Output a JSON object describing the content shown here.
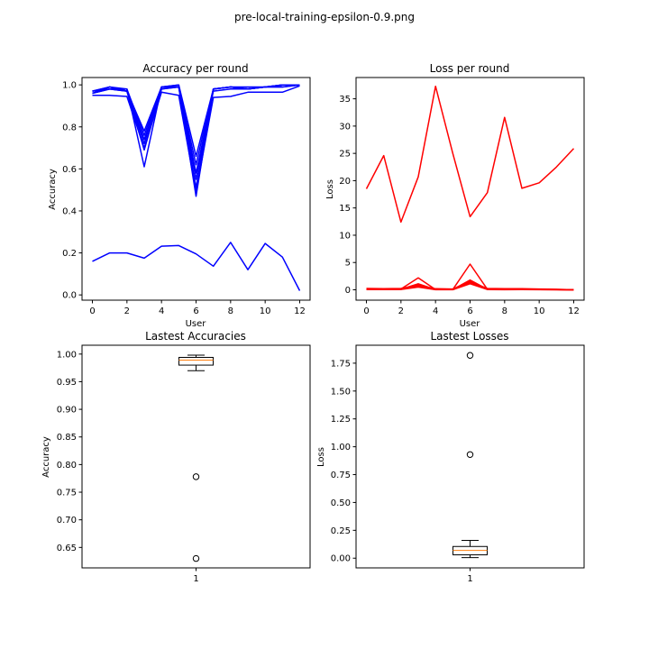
{
  "figure_title": "pre-local-training-epsilon-0.9.png",
  "chart_data": [
    {
      "id": "accuracy-per-round",
      "type": "line",
      "title": "Accuracy per round",
      "xlabel": "User",
      "ylabel": "Accuracy",
      "xlim": [
        -0.6,
        12.6
      ],
      "ylim": [
        -0.025,
        1.035
      ],
      "xticks": [
        0,
        2,
        4,
        6,
        8,
        10,
        12
      ],
      "yticks": [
        0.0,
        0.2,
        0.4,
        0.6,
        0.8,
        1.0
      ],
      "ytick_labels": [
        "0.0",
        "0.2",
        "0.4",
        "0.6",
        "0.8",
        "1.0"
      ],
      "color": "#0000ff",
      "x": [
        0,
        1,
        2,
        3,
        4,
        5,
        6,
        7,
        8,
        9,
        10,
        11,
        12
      ],
      "series": [
        {
          "values": [
            0.96,
            0.99,
            0.97,
            0.78,
            0.99,
            1.0,
            0.66,
            0.98,
            0.99,
            0.98,
            0.99,
            1.0,
            1.0
          ]
        },
        {
          "values": [
            0.97,
            0.99,
            0.98,
            0.76,
            0.99,
            0.99,
            0.62,
            0.98,
            0.99,
            0.98,
            0.99,
            1.0,
            1.0
          ]
        },
        {
          "values": [
            0.96,
            0.98,
            0.97,
            0.74,
            0.98,
            0.99,
            0.58,
            0.97,
            0.98,
            0.98,
            0.99,
            0.99,
            1.0
          ]
        },
        {
          "values": [
            0.97,
            0.99,
            0.97,
            0.72,
            0.99,
            1.0,
            0.55,
            0.98,
            0.99,
            0.99,
            0.99,
            1.0,
            1.0
          ]
        },
        {
          "values": [
            0.96,
            0.98,
            0.97,
            0.69,
            0.98,
            0.99,
            0.51,
            0.98,
            0.99,
            0.98,
            0.99,
            0.99,
            1.0
          ]
        },
        {
          "values": [
            0.97,
            0.98,
            0.98,
            0.61,
            0.99,
            0.99,
            0.47,
            0.98,
            0.99,
            0.98,
            0.99,
            1.0,
            1.0
          ]
        },
        {
          "values": [
            0.95,
            0.95,
            0.945,
            0.7,
            0.965,
            0.95,
            0.49,
            0.94,
            0.945,
            0.965,
            0.965,
            0.965,
            0.995
          ]
        },
        {
          "values": [
            0.16,
            0.2,
            0.2,
            0.175,
            0.232,
            0.235,
            0.195,
            0.137,
            0.25,
            0.12,
            0.245,
            0.18,
            0.02
          ]
        }
      ]
    },
    {
      "id": "loss-per-round",
      "type": "line",
      "title": "Loss per round",
      "xlabel": "User",
      "ylabel": "Loss",
      "xlim": [
        -0.6,
        12.6
      ],
      "ylim": [
        -1.9,
        38.9
      ],
      "xticks": [
        0,
        2,
        4,
        6,
        8,
        10,
        12
      ],
      "yticks": [
        0,
        5,
        10,
        15,
        20,
        25,
        30,
        35
      ],
      "ytick_labels": [
        "0",
        "5",
        "10",
        "15",
        "20",
        "25",
        "30",
        "35"
      ],
      "color": "#ff0000",
      "x": [
        0,
        1,
        2,
        3,
        4,
        5,
        6,
        7,
        8,
        9,
        10,
        11,
        12
      ],
      "series": [
        {
          "values": [
            18.5,
            24.6,
            12.4,
            20.7,
            37.3,
            25.0,
            13.4,
            17.8,
            31.6,
            18.6,
            19.6,
            22.5,
            25.9
          ]
        },
        {
          "values": [
            0.15,
            0.1,
            0.15,
            2.2,
            0.05,
            0.05,
            4.7,
            0.1,
            0.05,
            0.1,
            0.1,
            0.05,
            0.0
          ]
        },
        {
          "values": [
            0.1,
            0.08,
            0.12,
            1.1,
            0.05,
            0.05,
            1.8,
            0.1,
            0.05,
            0.08,
            0.05,
            0.03,
            0.0
          ]
        },
        {
          "values": [
            0.08,
            0.06,
            0.1,
            0.9,
            0.04,
            0.04,
            1.6,
            0.08,
            0.04,
            0.06,
            0.04,
            0.02,
            0.0
          ]
        },
        {
          "values": [
            0.05,
            0.04,
            0.08,
            0.7,
            0.03,
            0.03,
            1.3,
            0.06,
            0.03,
            0.05,
            0.03,
            0.02,
            0.0
          ]
        },
        {
          "values": [
            0.04,
            0.03,
            0.06,
            0.5,
            0.02,
            0.02,
            1.1,
            0.05,
            0.02,
            0.04,
            0.02,
            0.01,
            0.0
          ]
        },
        {
          "values": [
            0.25,
            0.2,
            0.25,
            0.8,
            0.2,
            0.15,
            1.4,
            0.25,
            0.2,
            0.2,
            0.15,
            0.1,
            0.0
          ]
        }
      ]
    },
    {
      "id": "lastest-accuracies",
      "type": "box",
      "title": "Lastest Accuracies",
      "xlabel": "",
      "ylabel": "Accuracy",
      "ylim": [
        0.613,
        1.016
      ],
      "yticks": [
        0.65,
        0.7,
        0.75,
        0.8,
        0.85,
        0.9,
        0.95,
        1.0
      ],
      "ytick_labels": [
        "0.65",
        "0.70",
        "0.75",
        "0.80",
        "0.85",
        "0.90",
        "0.95",
        "1.00"
      ],
      "xtick_labels": [
        "1"
      ],
      "box": {
        "whislo": 0.97,
        "q1": 0.98,
        "median": 0.989,
        "q3": 0.994,
        "whishi": 0.998,
        "fliers": [
          0.778,
          0.63
        ]
      },
      "median_color": "#ff7f0e"
    },
    {
      "id": "lastest-losses",
      "type": "box",
      "title": "Lastest Losses",
      "xlabel": "",
      "ylabel": "Loss",
      "ylim": [
        -0.087,
        1.911
      ],
      "yticks": [
        0.0,
        0.25,
        0.5,
        0.75,
        1.0,
        1.25,
        1.5,
        1.75
      ],
      "ytick_labels": [
        "0.00",
        "0.25",
        "0.50",
        "0.75",
        "1.00",
        "1.25",
        "1.50",
        "1.75"
      ],
      "xtick_labels": [
        "1"
      ],
      "box": {
        "whislo": 0.005,
        "q1": 0.03,
        "median": 0.07,
        "q3": 0.105,
        "whishi": 0.16,
        "fliers": [
          1.82,
          0.93
        ]
      },
      "median_color": "#ff7f0e"
    }
  ]
}
